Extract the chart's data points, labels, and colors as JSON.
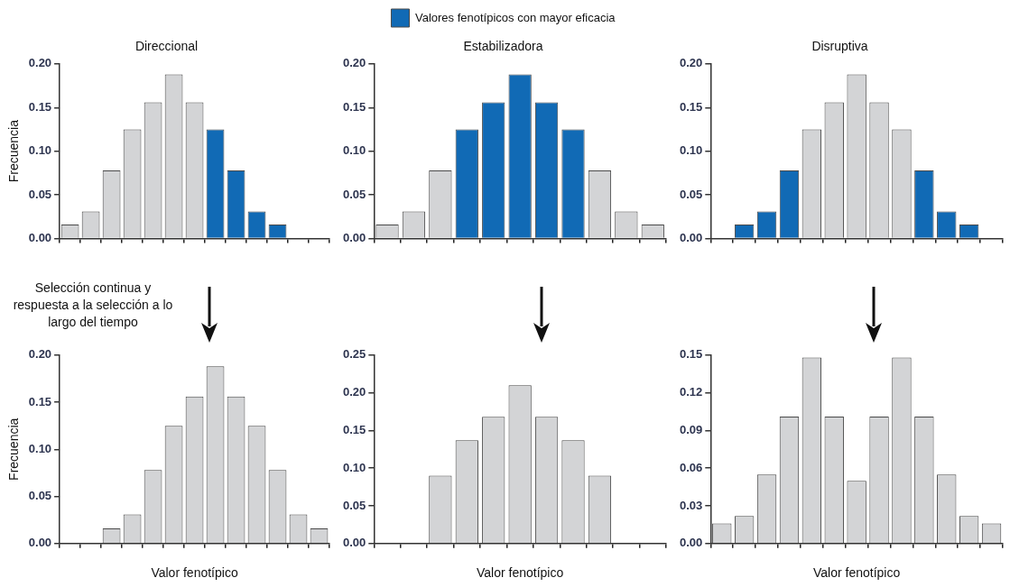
{
  "chart_data": [
    {
      "type": "bar",
      "title": "Direccional",
      "ylabel": "Frecuencia",
      "stacked": true,
      "legend": false,
      "annotations": [
        "Selección continua y respuesta a la selección a lo largo del tiempo"
      ],
      "categories": [
        null,
        null,
        null,
        null,
        null,
        null,
        null,
        null,
        null,
        null,
        null,
        null,
        null
      ],
      "series": [
        {
          "color": "#d3d4d6",
          "values": [
            0.016,
            0.031,
            0.078,
            0.125,
            0.156,
            0.188,
            0.156,
            null,
            null,
            null,
            null,
            null,
            null
          ]
        },
        {
          "color": "#116ab5",
          "values": [
            null,
            null,
            null,
            null,
            null,
            null,
            null,
            0.125,
            0.078,
            0.031,
            0.016,
            null,
            null
          ]
        }
      ],
      "ylim": [
        0,
        0.2
      ],
      "yticks": [
        {
          "value": 0,
          "label": "0.00"
        },
        {
          "value": 0.05,
          "label": "0.05"
        },
        {
          "value": 0.1,
          "label": "0.10"
        },
        {
          "value": 0.15,
          "label": "0.15"
        },
        {
          "value": 0.2,
          "label": "0.20"
        }
      ],
      "grid": false
    },
    {
      "type": "bar",
      "title": "Estabilizadora",
      "stacked": true,
      "legend": "top",
      "categories": [
        null,
        null,
        null,
        null,
        null,
        null,
        null,
        null,
        null,
        null,
        null
      ],
      "series": [
        {
          "color": "#d3d4d6",
          "values": [
            0.016,
            0.031,
            0.078,
            null,
            null,
            null,
            null,
            null,
            0.078,
            0.031,
            0.016
          ]
        },
        {
          "name": "Valores fenotípicos con mayor eficacia",
          "color": "#116ab5",
          "values": [
            null,
            null,
            null,
            0.125,
            0.156,
            0.188,
            0.156,
            0.125,
            null,
            null,
            null
          ]
        }
      ],
      "ylim": [
        0,
        0.2
      ],
      "yticks": [
        {
          "value": 0,
          "label": "0.00"
        },
        {
          "value": 0.05,
          "label": "0.05"
        },
        {
          "value": 0.1,
          "label": "0.10"
        },
        {
          "value": 0.15,
          "label": "0.15"
        },
        {
          "value": 0.2,
          "label": "0.20"
        }
      ],
      "grid": false
    },
    {
      "type": "bar",
      "title": "Disruptiva",
      "stacked": true,
      "legend": false,
      "categories": [
        null,
        null,
        null,
        null,
        null,
        null,
        null,
        null,
        null,
        null,
        null,
        null,
        null
      ],
      "series": [
        {
          "color": "#d3d4d6",
          "values": [
            null,
            null,
            null,
            null,
            0.125,
            0.156,
            0.188,
            0.156,
            0.125,
            null,
            null,
            null,
            null
          ]
        },
        {
          "color": "#116ab5",
          "values": [
            null,
            0.016,
            0.031,
            0.078,
            null,
            null,
            null,
            null,
            null,
            0.078,
            0.031,
            0.016,
            null
          ]
        }
      ],
      "ylim": [
        0,
        0.2
      ],
      "yticks": [
        {
          "value": 0,
          "label": "0.00"
        },
        {
          "value": 0.05,
          "label": "0.05"
        },
        {
          "value": 0.1,
          "label": "0.10"
        },
        {
          "value": 0.15,
          "label": "0.15"
        },
        {
          "value": 0.2,
          "label": "0.20"
        }
      ],
      "grid": false
    },
    {
      "type": "bar",
      "xlabel": "Valor fenotípico",
      "ylabel": "Frecuencia",
      "legend": false,
      "categories": [
        null,
        null,
        null,
        null,
        null,
        null,
        null,
        null,
        null,
        null,
        null,
        null,
        null
      ],
      "series": [
        {
          "color": "#d3d4d6",
          "values": [
            null,
            null,
            0.016,
            0.031,
            0.078,
            0.125,
            0.156,
            0.188,
            0.156,
            0.125,
            0.078,
            0.031,
            0.016
          ]
        }
      ],
      "ylim": [
        0,
        0.2
      ],
      "yticks": [
        {
          "value": 0,
          "label": "0.00"
        },
        {
          "value": 0.05,
          "label": "0.05"
        },
        {
          "value": 0.1,
          "label": "0.10"
        },
        {
          "value": 0.15,
          "label": "0.15"
        },
        {
          "value": 0.2,
          "label": "0.20"
        }
      ],
      "grid": false
    },
    {
      "type": "bar",
      "xlabel": "Valor fenotípico",
      "legend": false,
      "categories": [
        null,
        null,
        null,
        null,
        null,
        null,
        null,
        null,
        null,
        null,
        null
      ],
      "series": [
        {
          "color": "#d3d4d6",
          "values": [
            null,
            null,
            0.09,
            0.137,
            0.168,
            0.21,
            0.168,
            0.137,
            0.09,
            null,
            null
          ]
        }
      ],
      "ylim": [
        0,
        0.25
      ],
      "yticks": [
        {
          "value": 0,
          "label": "0.00"
        },
        {
          "value": 0.05,
          "label": "0.05"
        },
        {
          "value": 0.1,
          "label": "0.10"
        },
        {
          "value": 0.15,
          "label": "0.15"
        },
        {
          "value": 0.2,
          "label": "0.20"
        },
        {
          "value": 0.25,
          "label": "0.25"
        }
      ],
      "grid": false
    },
    {
      "type": "bar",
      "xlabel": "Valor fenotípico",
      "legend": false,
      "categories": [
        null,
        null,
        null,
        null,
        null,
        null,
        null,
        null,
        null,
        null,
        null,
        null,
        null
      ],
      "series": [
        {
          "color": "#d3d4d6",
          "values": [
            0.016,
            0.022,
            0.055,
            0.101,
            0.148,
            0.101,
            0.05,
            0.101,
            0.148,
            0.101,
            0.055,
            0.022,
            0.016
          ]
        }
      ],
      "ylim": [
        0,
        0.15
      ],
      "yticks": [
        {
          "value": 0,
          "label": "0.00"
        },
        {
          "value": 0.03,
          "label": "0.03"
        },
        {
          "value": 0.06,
          "label": "0.06"
        },
        {
          "value": 0.09,
          "label": "0.09"
        },
        {
          "value": 0.12,
          "label": "0.12"
        },
        {
          "value": 0.15,
          "label": "0.15"
        }
      ],
      "grid": false
    }
  ]
}
